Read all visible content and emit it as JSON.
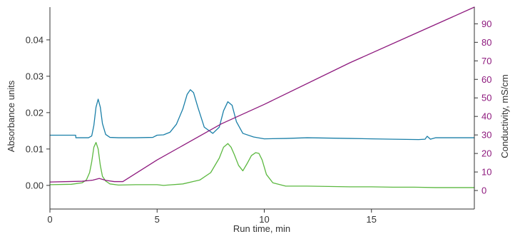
{
  "chart_data": {
    "type": "line",
    "xlabel": "Run time, min",
    "ylabel_left": "Absorbance units",
    "ylabel_right": "Conductivity, mS/cm",
    "xlim": [
      0,
      19.8
    ],
    "ylim_left": [
      -0.0065,
      0.049
    ],
    "ylim_right": [
      -10,
      99
    ],
    "x_ticks": [
      0,
      5,
      10,
      15
    ],
    "y_left_ticks": [
      0.0,
      0.01,
      0.02,
      0.03,
      0.04
    ],
    "y_left_tick_labels": [
      "0.00",
      "0.01",
      "0.02",
      "0.03",
      "0.04"
    ],
    "y_right_ticks": [
      0,
      10,
      20,
      30,
      40,
      50,
      60,
      70,
      80,
      90
    ],
    "grid": false,
    "colors": {
      "blue_trace": "#1a7fa8",
      "green_trace": "#5cb840",
      "conductivity": "#8e1a7e",
      "axis": "#333333"
    },
    "series": [
      {
        "axis": "left",
        "color": "#1a7fa8",
        "x": [
          0,
          1.2,
          1.21,
          1.3,
          1.8,
          1.95,
          2.05,
          2.15,
          2.25,
          2.35,
          2.45,
          2.6,
          2.8,
          3.2,
          4.0,
          4.8,
          5.0,
          5.3,
          5.6,
          5.9,
          6.2,
          6.4,
          6.55,
          6.7,
          6.9,
          7.2,
          7.6,
          7.9,
          8.1,
          8.3,
          8.5,
          8.7,
          9.0,
          9.5,
          10.0,
          11.0,
          12.0,
          13.0,
          14.0,
          15.0,
          16.0,
          17.2,
          17.5,
          17.6,
          17.75,
          18.0,
          19.0,
          19.8
        ],
        "y": [
          0.0138,
          0.0138,
          0.0131,
          0.0131,
          0.0131,
          0.0136,
          0.0165,
          0.0215,
          0.0237,
          0.0215,
          0.017,
          0.014,
          0.0132,
          0.0131,
          0.0131,
          0.0132,
          0.0138,
          0.0139,
          0.0146,
          0.0168,
          0.021,
          0.025,
          0.0263,
          0.0255,
          0.0215,
          0.016,
          0.0143,
          0.016,
          0.0205,
          0.023,
          0.022,
          0.0175,
          0.0143,
          0.0133,
          0.0128,
          0.0129,
          0.0131,
          0.013,
          0.0129,
          0.0128,
          0.0127,
          0.0126,
          0.0127,
          0.0135,
          0.0127,
          0.0131,
          0.0131,
          0.0131
        ]
      },
      {
        "axis": "left",
        "color": "#5cb840",
        "x": [
          0,
          1.0,
          1.5,
          1.7,
          1.85,
          1.95,
          2.05,
          2.15,
          2.25,
          2.35,
          2.45,
          2.6,
          2.8,
          3.2,
          4.0,
          5.0,
          5.3,
          5.5,
          6.2,
          7.0,
          7.5,
          7.9,
          8.1,
          8.3,
          8.45,
          8.6,
          8.8,
          9.0,
          9.2,
          9.4,
          9.6,
          9.75,
          9.9,
          10.1,
          10.4,
          11.0,
          12.0,
          13.0,
          14.0,
          15.0,
          16.0,
          17.0,
          18.0,
          19.0,
          19.8
        ],
        "y": [
          0.0002,
          0.0003,
          0.0007,
          0.0015,
          0.0035,
          0.0065,
          0.0105,
          0.0118,
          0.01,
          0.0055,
          0.0025,
          0.0012,
          0.0004,
          0.0001,
          0.0002,
          0.0002,
          0.0,
          0.0001,
          0.0004,
          0.0015,
          0.0035,
          0.0075,
          0.0105,
          0.0115,
          0.0105,
          0.0085,
          0.0055,
          0.004,
          0.006,
          0.0082,
          0.009,
          0.0088,
          0.007,
          0.003,
          0.0007,
          -0.0002,
          -0.0002,
          -0.0003,
          -0.0004,
          -0.0004,
          -0.0005,
          -0.0005,
          -0.0006,
          -0.0006,
          -0.0006
        ]
      },
      {
        "axis": "right",
        "color": "#8e1a7e",
        "x": [
          0,
          1.5,
          2.0,
          2.3,
          2.6,
          3.0,
          3.4,
          5.0,
          8.0,
          10.0,
          14.0,
          17.0,
          19.8
        ],
        "y": [
          4.6,
          5.0,
          5.6,
          6.5,
          5.5,
          4.8,
          4.8,
          16.5,
          36.0,
          46.5,
          69.0,
          84.5,
          99.0
        ]
      }
    ]
  }
}
